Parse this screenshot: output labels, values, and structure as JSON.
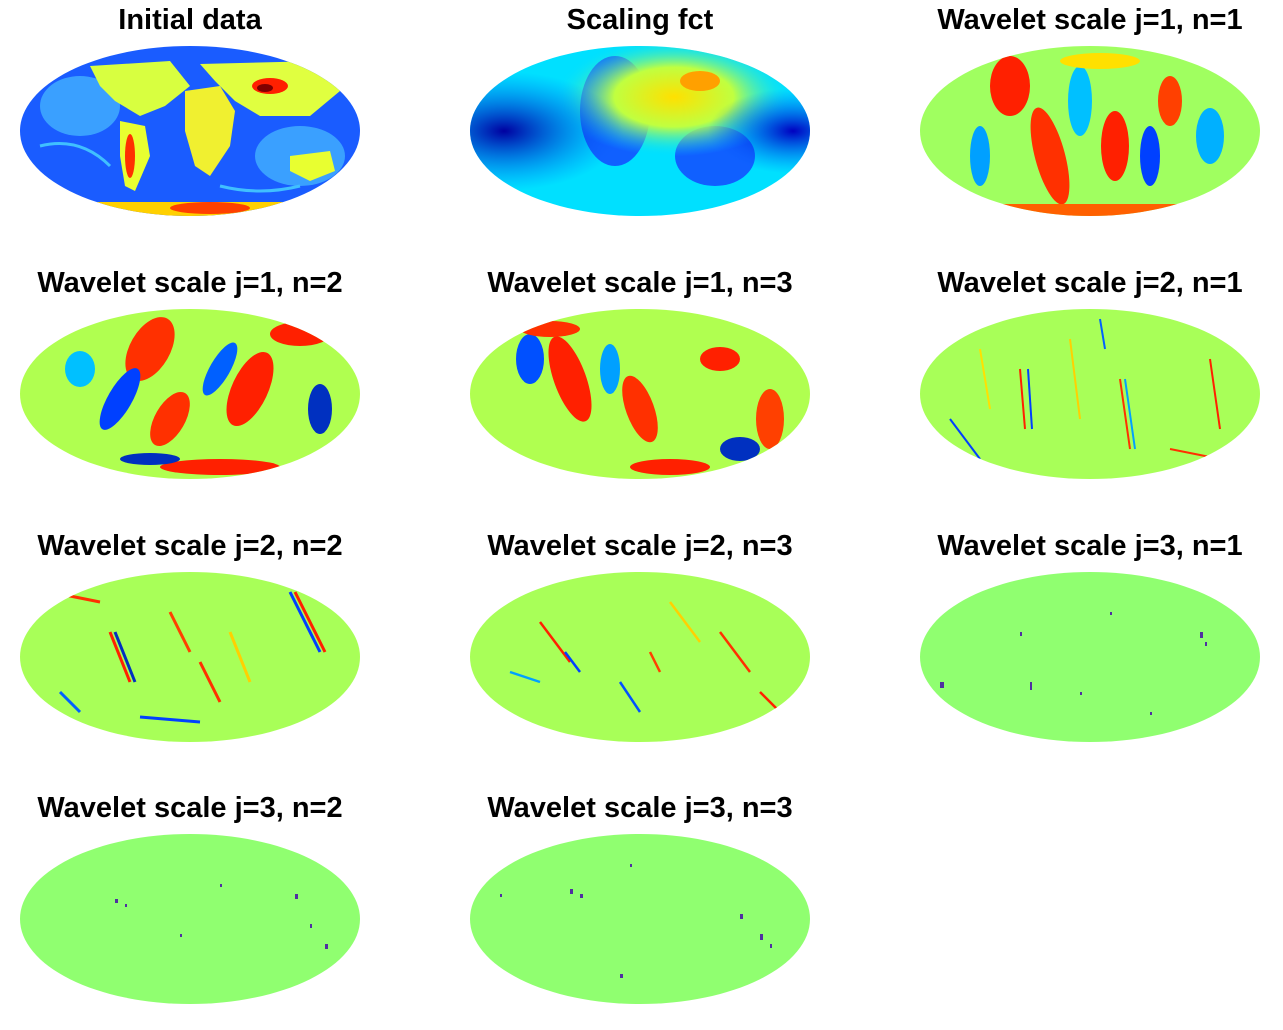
{
  "panels": [
    {
      "title": "Initial data",
      "map": "earth-topography"
    },
    {
      "title": "Scaling fct",
      "map": "smooth-low-frequency"
    },
    {
      "title": "Wavelet scale j=1, n=1",
      "map": "wavelet-coarse"
    },
    {
      "title": "Wavelet scale j=1, n=2",
      "map": "wavelet-coarse"
    },
    {
      "title": "Wavelet scale j=1, n=3",
      "map": "wavelet-coarse"
    },
    {
      "title": "Wavelet scale j=2, n=1",
      "map": "wavelet-medium"
    },
    {
      "title": "Wavelet scale j=2, n=2",
      "map": "wavelet-medium"
    },
    {
      "title": "Wavelet scale j=2, n=3",
      "map": "wavelet-medium"
    },
    {
      "title": "Wavelet scale j=3, n=1",
      "map": "wavelet-fine"
    },
    {
      "title": "Wavelet scale j=3, n=2",
      "map": "wavelet-fine"
    },
    {
      "title": "Wavelet scale j=3, n=3",
      "map": "wavelet-fine"
    }
  ],
  "colormap": [
    "#00008f",
    "#0000ff",
    "#00ffff",
    "#ffff00",
    "#ff0000",
    "#800000"
  ]
}
